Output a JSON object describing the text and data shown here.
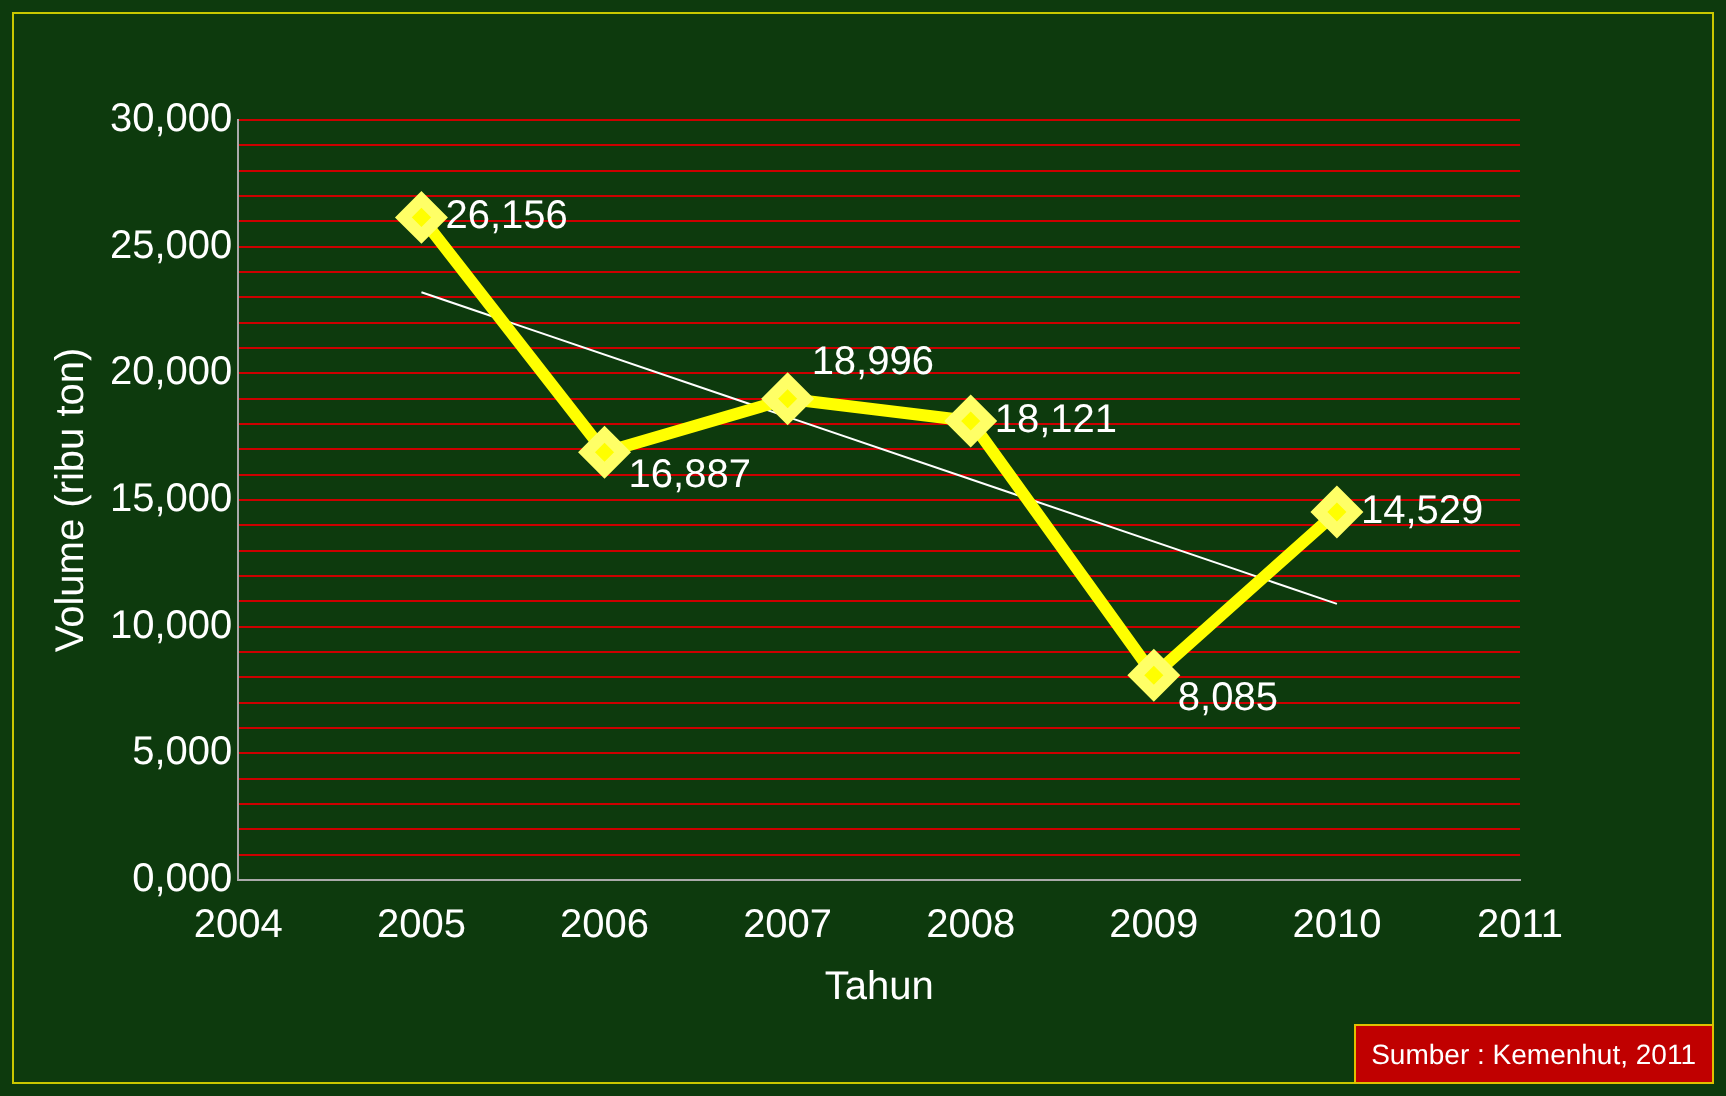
{
  "chart_data": {
    "type": "line",
    "xlabel": "Tahun",
    "ylabel": "Volume (ribu ton)",
    "x": [
      2005,
      2006,
      2007,
      2008,
      2009,
      2010
    ],
    "series": [
      {
        "color": "#ffff00",
        "values": [
          26156,
          16887,
          18996,
          18121,
          8085,
          14529
        ],
        "value_labels": [
          "26,156",
          "16,887",
          "18,996",
          "18,121",
          "8,085",
          "14,529"
        ],
        "marker": "diamond"
      },
      {
        "type": "line",
        "color": "#ffffff",
        "x": [
          2005,
          2010
        ],
        "values": [
          23200,
          10900
        ],
        "marker": "none"
      }
    ],
    "xlim": [
      2004,
      2011
    ],
    "xticks": [
      2004,
      2005,
      2006,
      2007,
      2008,
      2009,
      2010,
      2011
    ],
    "ylim": [
      0,
      30000
    ],
    "yticks": [
      {
        "value": 0,
        "label": "0,000"
      },
      {
        "value": 1000,
        "label": null
      },
      {
        "value": 2000,
        "label": null
      },
      {
        "value": 3000,
        "label": null
      },
      {
        "value": 4000,
        "label": null
      },
      {
        "value": 5000,
        "label": "5,000"
      },
      {
        "value": 6000,
        "label": null
      },
      {
        "value": 7000,
        "label": null
      },
      {
        "value": 8000,
        "label": null
      },
      {
        "value": 9000,
        "label": null
      },
      {
        "value": 10000,
        "label": "10,000"
      },
      {
        "value": 11000,
        "label": null
      },
      {
        "value": 12000,
        "label": null
      },
      {
        "value": 13000,
        "label": null
      },
      {
        "value": 14000,
        "label": null
      },
      {
        "value": 15000,
        "label": "15,000"
      },
      {
        "value": 16000,
        "label": null
      },
      {
        "value": 17000,
        "label": null
      },
      {
        "value": 18000,
        "label": null
      },
      {
        "value": 19000,
        "label": null
      },
      {
        "value": 20000,
        "label": "20,000"
      },
      {
        "value": 21000,
        "label": null
      },
      {
        "value": 22000,
        "label": null
      },
      {
        "value": 23000,
        "label": null
      },
      {
        "value": 24000,
        "label": null
      },
      {
        "value": 25000,
        "label": "25,000"
      },
      {
        "value": 26000,
        "label": null
      },
      {
        "value": 27000,
        "label": null
      },
      {
        "value": 28000,
        "label": null
      },
      {
        "value": 29000,
        "label": null
      },
      {
        "value": 30000,
        "label": "30,000"
      }
    ],
    "grid": "y",
    "legend": false,
    "annotations": [
      "Sumber : Kemenhut, 2011"
    ]
  }
}
